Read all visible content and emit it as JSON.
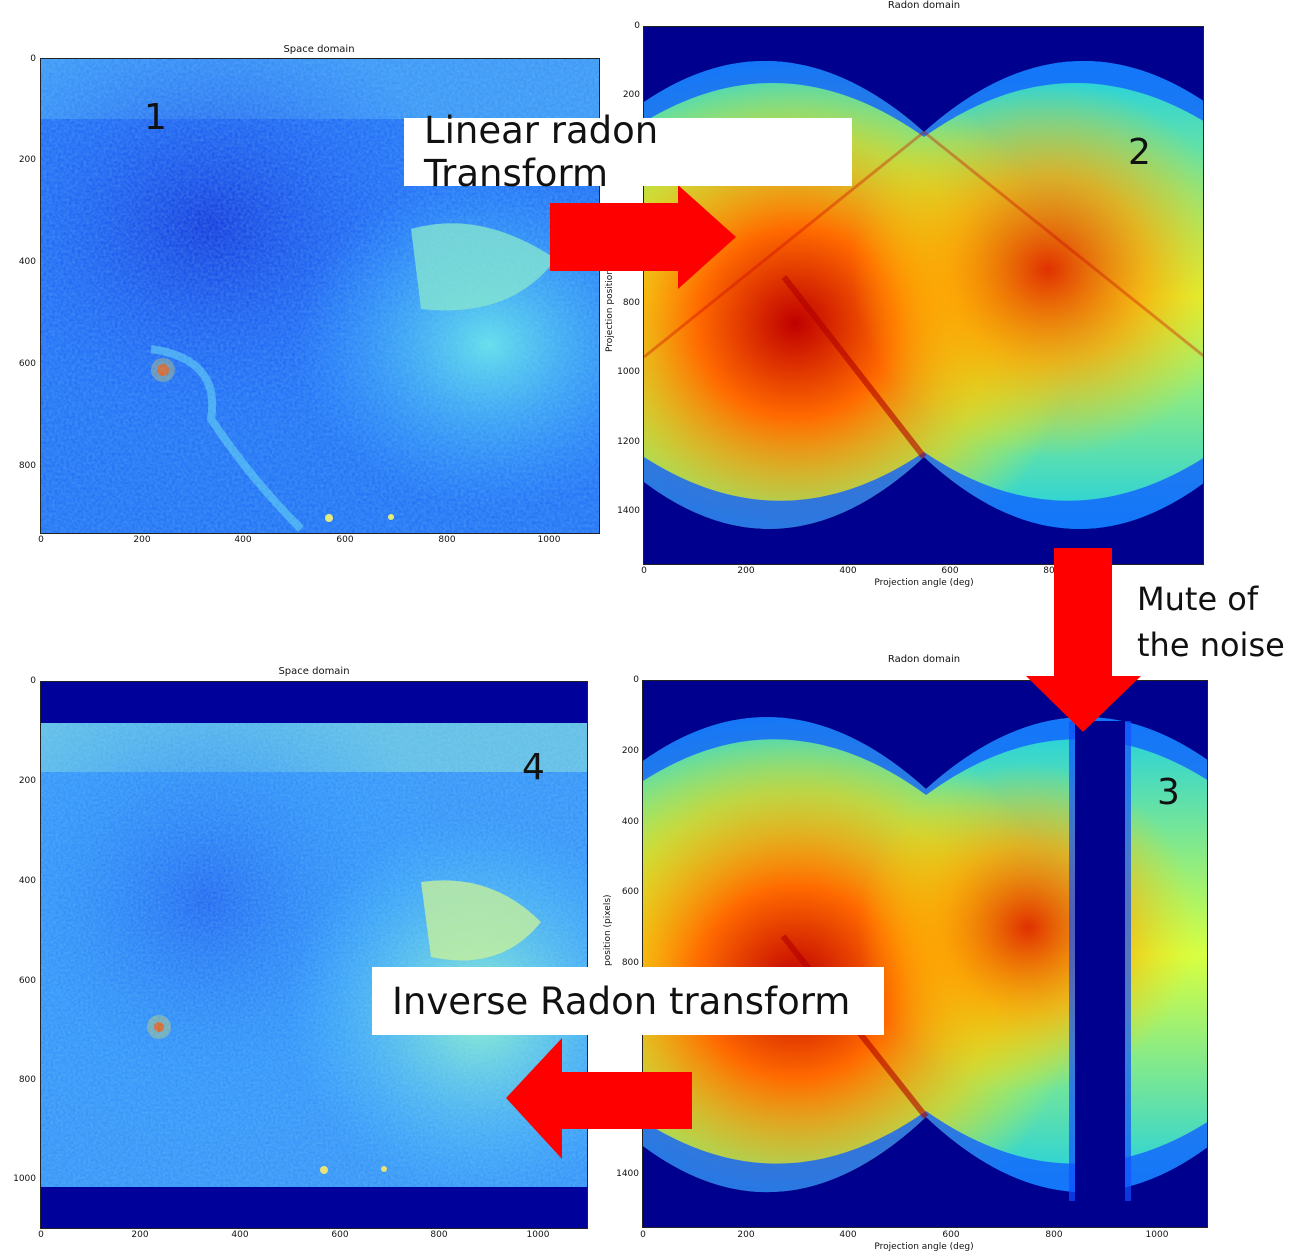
{
  "panels": {
    "p1": {
      "title": "Space domain",
      "number": "1",
      "xticks": [
        "0",
        "200",
        "400",
        "600",
        "800",
        "1000"
      ],
      "yticks": [
        "0",
        "200",
        "400",
        "600",
        "800"
      ]
    },
    "p2": {
      "title": "Radon domain",
      "number": "2",
      "xticks": [
        "0",
        "200",
        "400",
        "600",
        "80"
      ],
      "yticks": [
        "0",
        "200",
        "800",
        "1000",
        "1200",
        "1400"
      ],
      "xlabel": "Projection angle (deg)",
      "ylabel": "Projection position (p"
    },
    "p3": {
      "title": "Radon domain",
      "number": "3",
      "xticks": [
        "0",
        "200",
        "400",
        "600",
        "800",
        "1000"
      ],
      "yticks": [
        "0",
        "200",
        "400",
        "600",
        "800",
        "1400"
      ],
      "xlabel": "Projection angle (deg)",
      "ylabel": "position (pixels)"
    },
    "p4": {
      "title": "Space domain",
      "number": "4",
      "xticks": [
        "0",
        "200",
        "400",
        "600",
        "800",
        "1000"
      ],
      "yticks": [
        "0",
        "200",
        "400",
        "600",
        "800",
        "1000"
      ]
    }
  },
  "callouts": {
    "linear": "Linear radon Transform",
    "inverse": "Inverse Radon transform",
    "mute_line1": "Mute of",
    "mute_line2": "the noise"
  },
  "colors": {
    "arrow": "#ff0000",
    "jet_blue": "#00008f",
    "jet_red": "#d00000"
  }
}
